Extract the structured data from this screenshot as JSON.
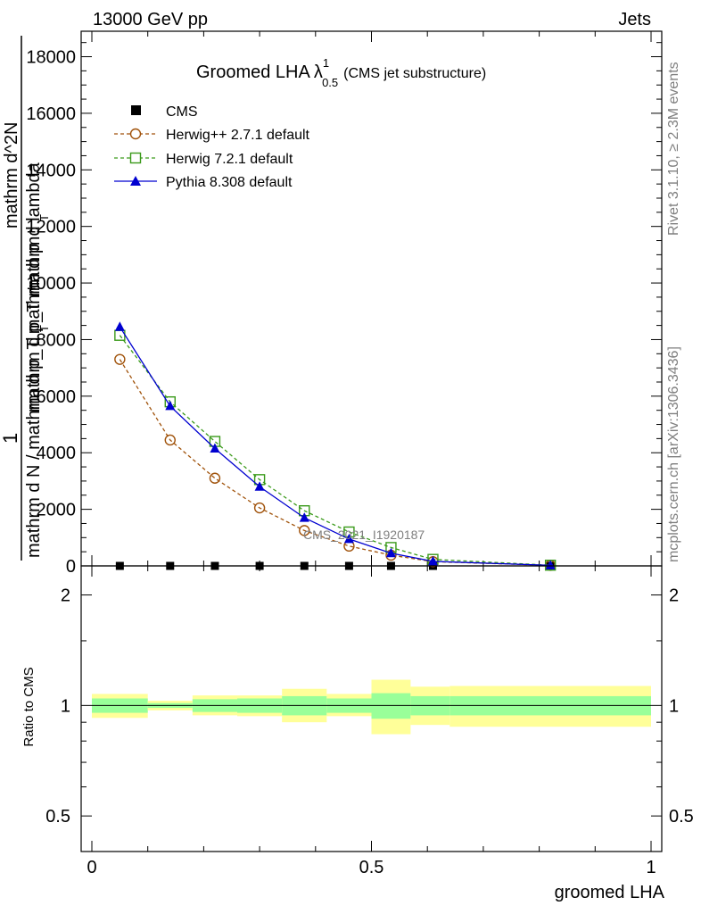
{
  "header": {
    "energy_label": "13000 GeV pp",
    "category_label": "Jets"
  },
  "side_labels": {
    "rivet_version": "Rivet 3.1.10, ≥ 2.3M events",
    "source": "mcplots.cern.ch [arXiv:1306.3436]"
  },
  "chart_data": [
    {
      "type": "line",
      "panel": "main",
      "title": "Groomed LHA",
      "title_symbol": "λ",
      "title_superscript": "1",
      "title_subscript": "0.5",
      "title_note": "(CMS jet substructure)",
      "ylabel_parts": [
        "1",
        "mathrm d N / mathrm d p_T mathrm d p",
        "mathrm d^2N",
        "T",
        "T",
        "mathrm d p_T mathrmd lambda"
      ],
      "watermark": "CMS_2021_I1920187",
      "ylim": [
        0,
        18900
      ],
      "y_tick_labels": [
        "0",
        "2000",
        "4000",
        "6000",
        "8000",
        "10000",
        "12000",
        "14000",
        "16000",
        "18000"
      ],
      "y_ticks": [
        0,
        2000,
        4000,
        6000,
        8000,
        10000,
        12000,
        14000,
        16000,
        18000
      ],
      "x": [
        0.05,
        0.14,
        0.22,
        0.3,
        0.38,
        0.46,
        0.535,
        0.61,
        0.82
      ],
      "series": [
        {
          "name": "CMS",
          "color": "#000000",
          "marker": "filled-square",
          "dash": "none",
          "values": [
            0,
            0,
            0,
            0,
            0,
            0,
            0,
            0,
            0
          ]
        },
        {
          "name": "Herwig++ 2.7.1 default",
          "color": "#a0520a",
          "marker": "open-circle",
          "dash": "dashed",
          "values": [
            7300,
            4450,
            3100,
            2050,
            1250,
            700,
            380,
            150,
            20
          ]
        },
        {
          "name": "Herwig 7.2.1 default",
          "color": "#3a9a1a",
          "marker": "open-square",
          "dash": "dashed",
          "values": [
            8150,
            5800,
            4400,
            3050,
            1950,
            1200,
            650,
            230,
            25
          ]
        },
        {
          "name": "Pythia 8.308 default",
          "color": "#0000d0",
          "marker": "filled-triangle",
          "dash": "none",
          "values": [
            8450,
            5650,
            4150,
            2800,
            1700,
            950,
            450,
            160,
            20
          ]
        }
      ]
    },
    {
      "type": "area",
      "panel": "ratio",
      "ylabel": "Ratio to CMS",
      "xlabel": "groomed LHA",
      "xlim": [
        0,
        1
      ],
      "x_ticks": [
        0,
        0.5,
        1
      ],
      "x_tick_labels": [
        "0",
        "0.5",
        "1"
      ],
      "y_scale": "log",
      "ylim": [
        0.4,
        2.4
      ],
      "y_ticks": [
        0.5,
        1,
        2
      ],
      "y_tick_labels": [
        "0.5",
        "1",
        "2"
      ],
      "reference_line": 1,
      "bins": [
        {
          "lo": 0.0,
          "hi": 0.1,
          "stat": [
            0.955,
            1.045
          ],
          "total": [
            0.925,
            1.075
          ]
        },
        {
          "lo": 0.1,
          "hi": 0.18,
          "stat": [
            0.985,
            1.015
          ],
          "total": [
            0.97,
            1.03
          ]
        },
        {
          "lo": 0.18,
          "hi": 0.26,
          "stat": [
            0.96,
            1.04
          ],
          "total": [
            0.94,
            1.065
          ]
        },
        {
          "lo": 0.26,
          "hi": 0.34,
          "stat": [
            0.955,
            1.045
          ],
          "total": [
            0.935,
            1.065
          ]
        },
        {
          "lo": 0.34,
          "hi": 0.42,
          "stat": [
            0.94,
            1.06
          ],
          "total": [
            0.9,
            1.11
          ]
        },
        {
          "lo": 0.42,
          "hi": 0.5,
          "stat": [
            0.955,
            1.045
          ],
          "total": [
            0.935,
            1.075
          ]
        },
        {
          "lo": 0.5,
          "hi": 0.57,
          "stat": [
            0.92,
            1.08
          ],
          "total": [
            0.835,
            1.175
          ]
        },
        {
          "lo": 0.57,
          "hi": 0.64,
          "stat": [
            0.94,
            1.06
          ],
          "total": [
            0.885,
            1.125
          ]
        },
        {
          "lo": 0.64,
          "hi": 1.0,
          "stat": [
            0.94,
            1.06
          ],
          "total": [
            0.875,
            1.13
          ]
        }
      ]
    }
  ],
  "colors": {
    "stat_band": "#99ff99",
    "total_band": "#ffff99",
    "axis": "#000000",
    "side_text": "#7f7f7f"
  }
}
